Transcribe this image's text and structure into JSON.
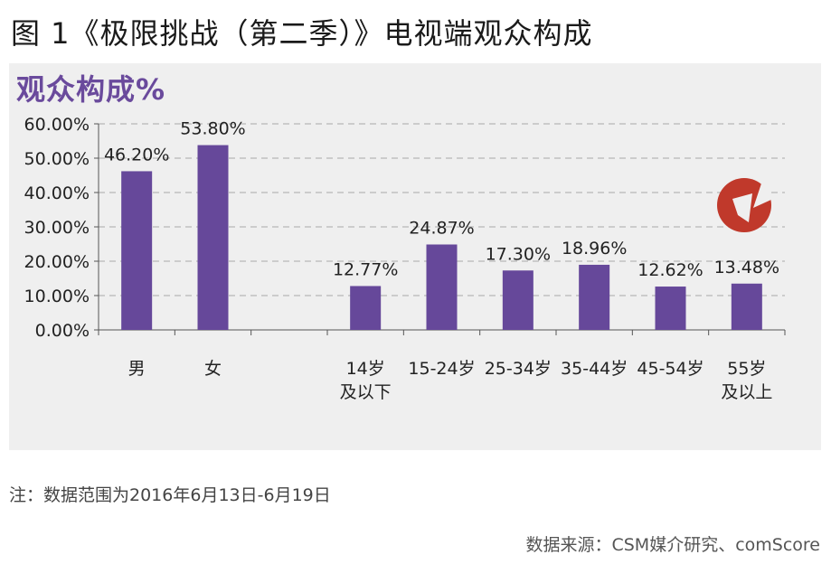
{
  "figure_title": "图 1《极限挑战（第二季）》电视端观众构成",
  "panel_title": "观众构成%",
  "note": "注：数据范围为2016年6月13日-6月19日",
  "source": "数据来源：CSM媒介研究、comScore",
  "colors": {
    "bar": "#66489a",
    "panel_bg": "#efefef",
    "title_accent": "#6a4a9c",
    "logo": "#c0392b"
  },
  "logo_icon": "csm-logo-icon",
  "chart_data": {
    "type": "bar",
    "title": "观众构成%",
    "xlabel": "",
    "ylabel": "",
    "ylim": [
      0,
      60
    ],
    "y_ticks": [
      "0.00%",
      "10.00%",
      "20.00%",
      "30.00%",
      "40.00%",
      "50.00%",
      "60.00%"
    ],
    "grid": true,
    "categories": [
      {
        "label": [
          "男"
        ],
        "value": 46.2,
        "data_label": "46.20%"
      },
      {
        "label": [
          "女"
        ],
        "value": 53.8,
        "data_label": "53.80%"
      },
      {
        "label": [
          ""
        ],
        "value": null,
        "data_label": ""
      },
      {
        "label": [
          "14岁",
          "及以下"
        ],
        "value": 12.77,
        "data_label": "12.77%"
      },
      {
        "label": [
          "15-24岁"
        ],
        "value": 24.87,
        "data_label": "24.87%"
      },
      {
        "label": [
          "25-34岁"
        ],
        "value": 17.3,
        "data_label": "17.30%"
      },
      {
        "label": [
          "35-44岁"
        ],
        "value": 18.96,
        "data_label": "18.96%"
      },
      {
        "label": [
          "45-54岁"
        ],
        "value": 12.62,
        "data_label": "12.62%"
      },
      {
        "label": [
          "55岁",
          "及以上"
        ],
        "value": 13.48,
        "data_label": "13.48%"
      }
    ]
  }
}
